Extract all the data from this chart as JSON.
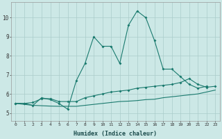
{
  "xlabel": "Humidex (Indice chaleur)",
  "bg_color": "#cce8e6",
  "grid_color": "#aaccca",
  "line_color": "#1a7a6e",
  "xlim_min": -0.5,
  "xlim_max": 23.5,
  "ylim_min": 4.6,
  "ylim_max": 10.8,
  "xtick_labels": [
    "0",
    "1",
    "2",
    "3",
    "4",
    "5",
    "6",
    "7",
    "8",
    "9",
    "10",
    "11",
    "12",
    "13",
    "14",
    "15",
    "16",
    "17",
    "18",
    "19",
    "20",
    "21",
    "22",
    "23"
  ],
  "ytick_vals": [
    5,
    6,
    7,
    8,
    9,
    10
  ],
  "series1_x": [
    0,
    1,
    2,
    3,
    4,
    5,
    6,
    7,
    8,
    9,
    10,
    11,
    12,
    13,
    14,
    15,
    16,
    17,
    18,
    19,
    20,
    21,
    22
  ],
  "series1_y": [
    5.5,
    5.5,
    5.4,
    5.8,
    5.7,
    5.5,
    5.2,
    6.7,
    7.6,
    9.0,
    8.5,
    8.5,
    7.6,
    9.6,
    10.35,
    10.0,
    8.8,
    7.3,
    7.3,
    6.9,
    6.5,
    6.3,
    6.4
  ],
  "series2_x": [
    0,
    1,
    2,
    3,
    4,
    5,
    6,
    7,
    8,
    9,
    10,
    11,
    12,
    13,
    14,
    15,
    16,
    17,
    18,
    19,
    20,
    21,
    22,
    23
  ],
  "series2_y": [
    5.5,
    5.5,
    5.55,
    5.75,
    5.75,
    5.6,
    5.6,
    5.6,
    5.8,
    5.9,
    6.0,
    6.1,
    6.15,
    6.2,
    6.3,
    6.35,
    6.4,
    6.45,
    6.5,
    6.6,
    6.8,
    6.5,
    6.35,
    6.4
  ],
  "series3_x": [
    0,
    1,
    2,
    3,
    4,
    5,
    6,
    7,
    8,
    9,
    10,
    11,
    12,
    13,
    14,
    15,
    16,
    17,
    18,
    19,
    20,
    21,
    22,
    23
  ],
  "series3_y": [
    5.5,
    5.45,
    5.4,
    5.38,
    5.36,
    5.35,
    5.35,
    5.35,
    5.4,
    5.45,
    5.5,
    5.55,
    5.6,
    5.62,
    5.65,
    5.7,
    5.72,
    5.8,
    5.85,
    5.9,
    5.95,
    6.0,
    6.1,
    6.2
  ]
}
